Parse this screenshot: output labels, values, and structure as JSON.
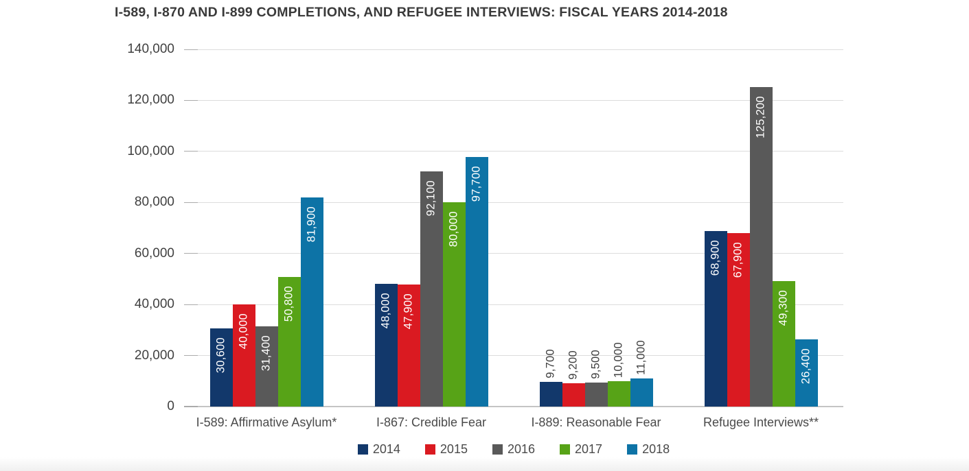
{
  "title": "I-589, I-870 AND I-899 COMPLETIONS, AND REFUGEE INTERVIEWS: FISCAL YEARS 2014-2018",
  "chart_data": {
    "type": "bar",
    "title": "I-589, I-870 AND I-899 COMPLETIONS, AND REFUGEE INTERVIEWS: FISCAL YEARS 2014-2018",
    "categories": [
      "I-589: Affirmative Asylum*",
      "I-867: Credible Fear",
      "I-889: Reasonable Fear",
      "Refugee Interviews**"
    ],
    "series": [
      {
        "name": "2014",
        "color": "#12386b",
        "values": [
          30600,
          48000,
          9700,
          68900
        ],
        "value_labels": [
          "30,600",
          "48,000",
          "9,700",
          "68,900"
        ]
      },
      {
        "name": "2015",
        "color": "#da1a21",
        "values": [
          40000,
          47900,
          9200,
          67900
        ],
        "value_labels": [
          "40,000",
          "47,900",
          "9,200",
          "67,900"
        ]
      },
      {
        "name": "2016",
        "color": "#595959",
        "values": [
          31400,
          92100,
          9500,
          125200
        ],
        "value_labels": [
          "31,400",
          "92,100",
          "9,500",
          "125,200"
        ]
      },
      {
        "name": "2017",
        "color": "#57a317",
        "values": [
          50800,
          80000,
          10000,
          49300
        ],
        "value_labels": [
          "50,800",
          "80,000",
          "10,000",
          "49,300"
        ]
      },
      {
        "name": "2018",
        "color": "#0d73a6",
        "values": [
          81900,
          97700,
          11000,
          26400
        ],
        "value_labels": [
          "81,900",
          "97,700",
          "11,000",
          "26,400"
        ]
      }
    ],
    "ylim": [
      0,
      140000
    ],
    "yticks": [
      0,
      20000,
      40000,
      60000,
      80000,
      100000,
      120000,
      140000
    ],
    "ytick_labels": [
      "0",
      "20,000",
      "40,000",
      "60,000",
      "80,000",
      "100,000",
      "120,000",
      "140,000"
    ],
    "xlabel": "",
    "ylabel": "",
    "grid": true,
    "legend_position": "bottom",
    "value_label_style": "rotated 90deg; white inside tall bars, dark gray above short bars"
  }
}
